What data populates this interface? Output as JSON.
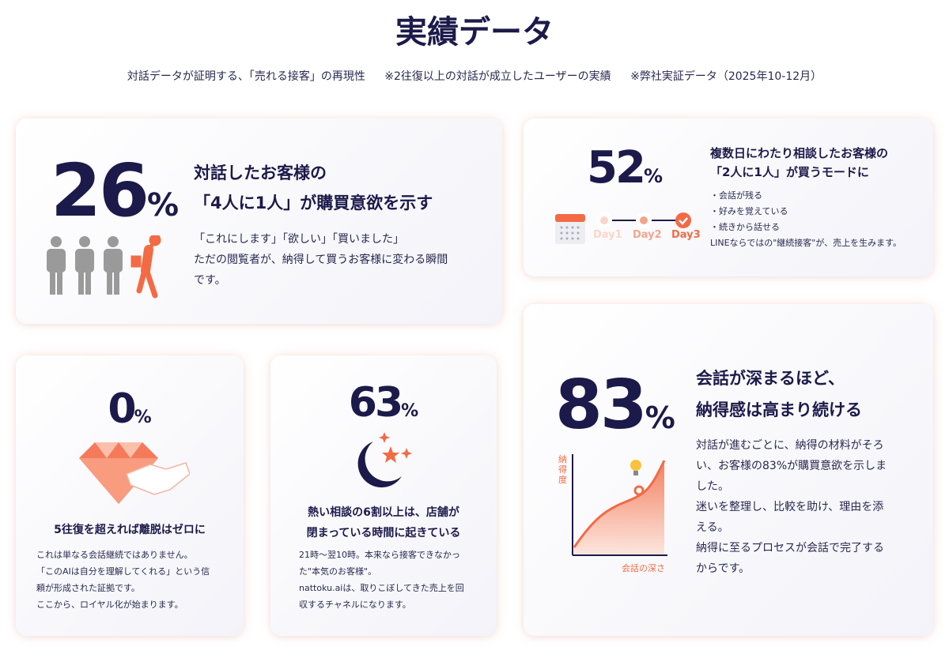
{
  "title": "実績データ",
  "subtitle": [
    "対話データが証明する、「売れる接客」の再現性",
    "※2往復以上の対話が成立したユーザーの実績",
    "※弊社実証データ（2025年10-12月）"
  ],
  "cards": {
    "purchase": {
      "value": "26",
      "unit": "%",
      "heading": [
        "対話したお客様の",
        "「4人に1人」が購買意欲を示す"
      ],
      "body": [
        "「これにします」「欲しい」「買いました」",
        "ただの閲覧者が、納得して買うお客様に変わる瞬間",
        "です。"
      ],
      "icon": "people-icon"
    },
    "multiday": {
      "value": "52",
      "unit": "%",
      "heading": [
        "複数日にわたり相談したお客様の",
        "「2人に1人」が買うモードに"
      ],
      "bullets": [
        "・会話が残る",
        "・好みを覚えている",
        "・続きから話せる"
      ],
      "footer": "LINEならではの\"継続接客\"が、売上を生みます。",
      "days": [
        "Day1",
        "Day2",
        "Day3"
      ],
      "icon": "calendar-icon"
    },
    "churn": {
      "value": "0",
      "unit": "%",
      "heading": "5往復を超えれば離脱はゼロに",
      "body": [
        "これは単なる会話継続ではありません。",
        "「このAIは自分を理解してくれる」という信",
        "頼が形成された証拠です。",
        "ここから、ロイヤル化が始まります。"
      ],
      "icon": "diamond-handshake-icon"
    },
    "night": {
      "value": "63",
      "unit": "%",
      "heading": [
        "熱い相談の6割以上は、店舗が",
        "閉まっている時間に起きている"
      ],
      "body": [
        "21時～翌10時。本来なら接客できなかっ",
        "た\"本気のお客様\"。",
        "nattoku.aiは、取りこぼしてきた売上を回",
        "収するチャネルになります。"
      ],
      "icon": "moon-stars-icon"
    },
    "satisfaction": {
      "value": "83",
      "unit": "%",
      "heading": [
        "会話が深まるほど、",
        "納得感は高まり続ける"
      ],
      "body": [
        "対話が進むごとに、納得の材料がそろ",
        "い、お客様の83%が購買意欲を示しま",
        "した。",
        "迷いを整理し、比較を助け、理由を添",
        "える。",
        "納得に至るプロセスが会話で完了する",
        "からです。"
      ],
      "chart": {
        "ylabel": "納得度",
        "xlabel": "会話の深さ"
      }
    }
  },
  "colors": {
    "navy": "#1c1a4a",
    "accent": "#f26b45"
  }
}
